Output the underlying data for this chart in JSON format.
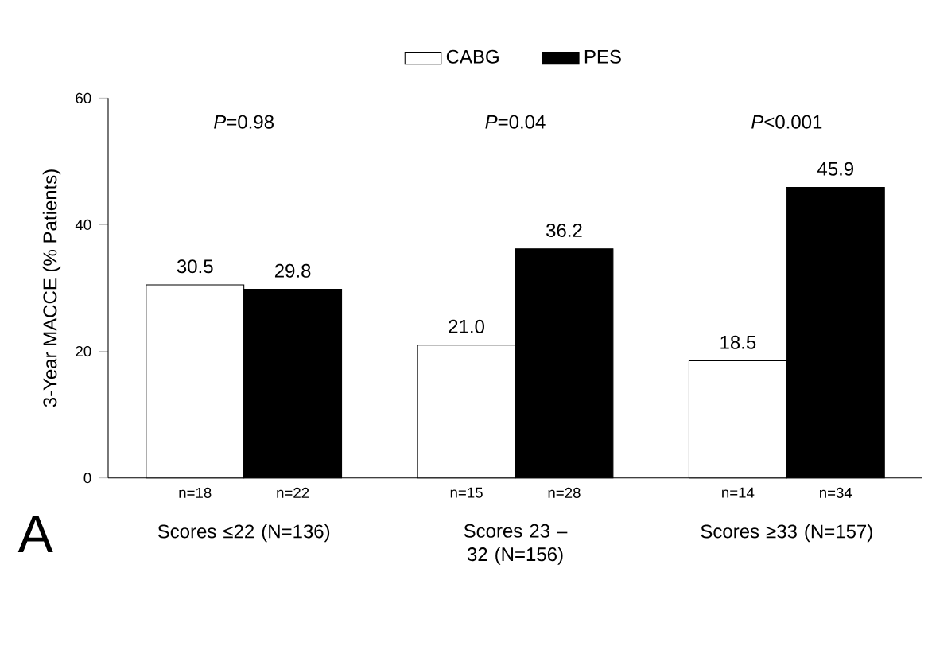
{
  "chart_data": {
    "type": "bar",
    "categories": [
      "Scores ≤22 (N=136)",
      "Scores 23 – 32 (N=156)",
      "Scores ≥33 (N=157)"
    ],
    "series": [
      {
        "name": "CABG",
        "color": "#ffffff",
        "values": [
          30.5,
          21.0,
          18.5
        ],
        "value_labels": [
          "30.5",
          "21.0",
          "18.5"
        ]
      },
      {
        "name": "PES",
        "color": "#000000",
        "values": [
          29.8,
          36.2,
          45.9
        ],
        "value_labels": [
          "29.8",
          "36.2",
          "45.9"
        ]
      }
    ],
    "ylabel": "3-Year MACCE (% Patients)",
    "ylim": [
      0,
      60
    ],
    "yticks": [
      0,
      20,
      40,
      60
    ],
    "legend": "top",
    "annotations": [
      "*P*=0.98",
      "*P*=0.04",
      "*P*<0.001",
      "n=18",
      "n=22",
      "n=15",
      "n=28",
      "n=14",
      "n=34",
      "A"
    ]
  }
}
